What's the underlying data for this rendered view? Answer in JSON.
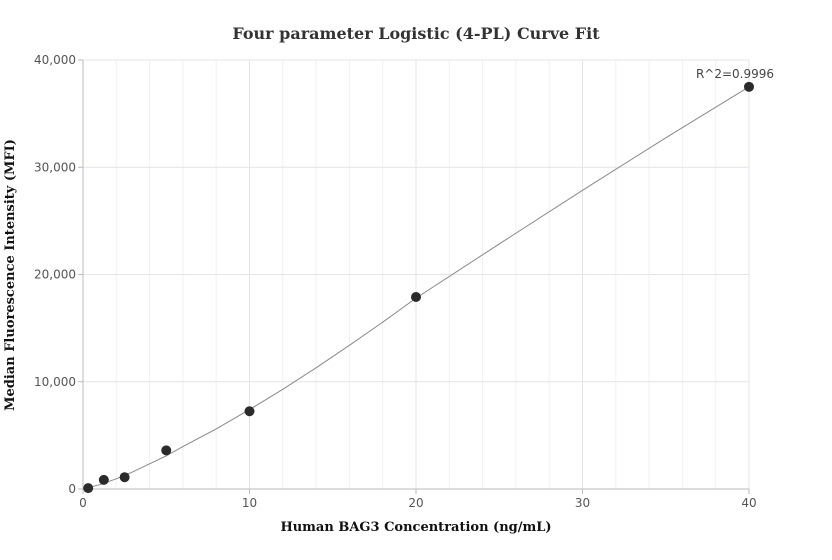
{
  "chart_data": {
    "type": "scatter",
    "title": "Four parameter Logistic (4-PL) Curve Fit",
    "xlabel": "Human BAG3 Concentration (ng/mL)",
    "ylabel": "Median Fluorescence Intensity (MFI)",
    "xlim": [
      0,
      40
    ],
    "ylim": [
      0,
      40000
    ],
    "x_ticks": [
      0,
      10,
      20,
      30,
      40
    ],
    "x_tick_labels": [
      "0",
      "10",
      "20",
      "30",
      "40"
    ],
    "y_ticks": [
      0,
      10000,
      20000,
      30000,
      40000
    ],
    "y_tick_labels": [
      "0",
      "10,000",
      "20,000",
      "30,000",
      "40,000"
    ],
    "grid": true,
    "series": [
      {
        "points": [
          {
            "x": 0.3125,
            "y": 80
          },
          {
            "x": 1.25,
            "y": 850
          },
          {
            "x": 2.5,
            "y": 1100
          },
          {
            "x": 5,
            "y": 3600
          },
          {
            "x": 10,
            "y": 7250
          },
          {
            "x": 20,
            "y": 17900
          },
          {
            "x": 40,
            "y": 37500
          }
        ],
        "color": "#2b2b2b"
      }
    ],
    "fit_curve": {
      "model": "4-PL",
      "color": "#888888",
      "x": [
        0,
        0.5,
        1,
        2,
        3,
        4,
        5,
        6,
        8,
        10,
        12,
        14,
        16,
        18,
        20,
        25,
        30,
        35,
        40
      ],
      "y": [
        80,
        200,
        400,
        950,
        1600,
        2350,
        3100,
        3950,
        5600,
        7400,
        9300,
        11300,
        13400,
        15550,
        17800,
        22850,
        27850,
        32750,
        37500
      ]
    },
    "annotation": "R^2=0.9996"
  }
}
